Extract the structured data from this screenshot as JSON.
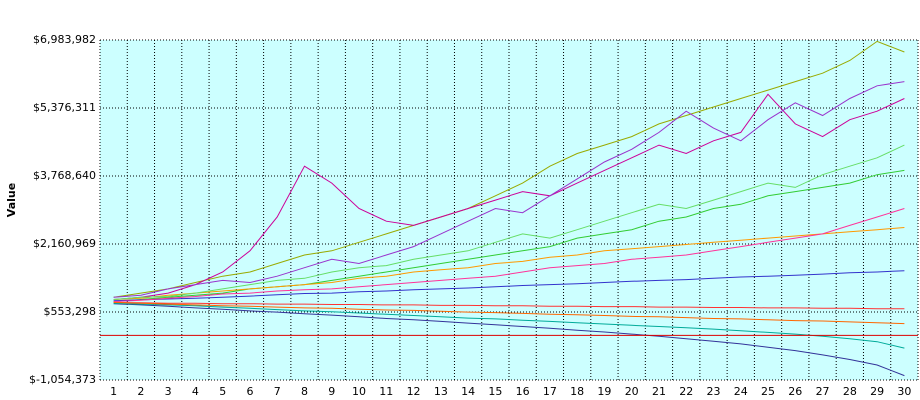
{
  "chart_data": {
    "type": "line",
    "y_label": "Value",
    "categories": [
      "1",
      "2",
      "3",
      "4",
      "5",
      "6",
      "7",
      "8",
      "9",
      "10",
      "11",
      "12",
      "13",
      "14",
      "15",
      "16",
      "17",
      "18",
      "19",
      "20",
      "21",
      "22",
      "23",
      "24",
      "25",
      "26",
      "27",
      "28",
      "29",
      "30"
    ],
    "ylim": [
      -1054373,
      6983982
    ],
    "yticks": [
      {
        "value": -1054373,
        "label": "$-1,054,373"
      },
      {
        "value": 553298,
        "label": "$553,298"
      },
      {
        "value": 2160969,
        "label": "$2,160,969"
      },
      {
        "value": 3768640,
        "label": "$3,768,640"
      },
      {
        "value": 5376311,
        "label": "$5,376,311"
      },
      {
        "value": 6983982,
        "label": "$6,983,982"
      }
    ],
    "grid": true,
    "background": "#ccffff",
    "reference_line": 0,
    "reference_color": "#dd0000",
    "series": [
      {
        "color": "#99aa00",
        "values": [
          900000,
          1000000,
          1100000,
          1250000,
          1400000,
          1500000,
          1700000,
          1900000,
          2000000,
          2200000,
          2400000,
          2600000,
          2800000,
          3000000,
          3300000,
          3600000,
          4000000,
          4300000,
          4500000,
          4700000,
          5000000,
          5200000,
          5400000,
          5600000,
          5800000,
          6000000,
          6200000,
          6500000,
          6950000,
          6700000
        ]
      },
      {
        "color": "#cc0099",
        "values": [
          850000,
          900000,
          1000000,
          1200000,
          1500000,
          2000000,
          2800000,
          4000000,
          3600000,
          3000000,
          2700000,
          2600000,
          2800000,
          3000000,
          3200000,
          3400000,
          3300000,
          3600000,
          3900000,
          4200000,
          4500000,
          4300000,
          4600000,
          4800000,
          5700000,
          5000000,
          4700000,
          5100000,
          5300000,
          5600000
        ]
      },
      {
        "color": "#33cc33",
        "values": [
          800000,
          850000,
          900000,
          950000,
          1000000,
          1100000,
          1150000,
          1200000,
          1300000,
          1400000,
          1500000,
          1600000,
          1700000,
          1800000,
          1900000,
          2000000,
          2100000,
          2300000,
          2400000,
          2500000,
          2700000,
          2800000,
          3000000,
          3100000,
          3300000,
          3400000,
          3500000,
          3600000,
          3800000,
          3900000
        ]
      },
      {
        "color": "#ff9900",
        "values": [
          850000,
          880000,
          950000,
          1000000,
          1050000,
          1100000,
          1150000,
          1200000,
          1250000,
          1350000,
          1400000,
          1500000,
          1550000,
          1600000,
          1700000,
          1750000,
          1850000,
          1900000,
          2000000,
          2050000,
          2100000,
          2150000,
          2200000,
          2250000,
          2300000,
          2350000,
          2400000,
          2450000,
          2500000,
          2550000
        ]
      },
      {
        "color": "#3333cc",
        "values": [
          820000,
          840000,
          860000,
          880000,
          900000,
          930000,
          960000,
          990000,
          1000000,
          1030000,
          1050000,
          1080000,
          1100000,
          1120000,
          1150000,
          1180000,
          1200000,
          1220000,
          1250000,
          1280000,
          1300000,
          1320000,
          1350000,
          1380000,
          1400000,
          1420000,
          1450000,
          1480000,
          1500000,
          1530000
        ]
      },
      {
        "color": "#ff3333",
        "values": [
          780000,
          770000,
          760000,
          760000,
          750000,
          750000,
          740000,
          740000,
          730000,
          730000,
          720000,
          720000,
          710000,
          710000,
          700000,
          700000,
          690000,
          690000,
          680000,
          680000,
          670000,
          670000,
          660000,
          660000,
          650000,
          650000,
          640000,
          640000,
          630000,
          630000
        ]
      },
      {
        "color": "#333399",
        "values": [
          750000,
          720000,
          690000,
          650000,
          620000,
          580000,
          550000,
          510000,
          480000,
          440000,
          400000,
          370000,
          330000,
          290000,
          250000,
          210000,
          170000,
          120000,
          80000,
          30000,
          -20000,
          -80000,
          -140000,
          -200000,
          -280000,
          -360000,
          -460000,
          -570000,
          -700000,
          -950000
        ]
      },
      {
        "color": "#00aa99",
        "values": [
          760000,
          740000,
          720000,
          700000,
          670000,
          640000,
          610000,
          580000,
          560000,
          530000,
          500000,
          470000,
          440000,
          410000,
          390000,
          360000,
          330000,
          300000,
          270000,
          240000,
          210000,
          180000,
          150000,
          110000,
          70000,
          30000,
          -20000,
          -80000,
          -150000,
          -300000
        ]
      },
      {
        "color": "#9933cc",
        "values": [
          900000,
          950000,
          1100000,
          1200000,
          1300000,
          1250000,
          1400000,
          1600000,
          1800000,
          1700000,
          1900000,
          2100000,
          2400000,
          2700000,
          3000000,
          2900000,
          3300000,
          3700000,
          4100000,
          4400000,
          4800000,
          5300000,
          4900000,
          4600000,
          5100000,
          5500000,
          5200000,
          5600000,
          5900000,
          6000000
        ]
      },
      {
        "color": "#66dd66",
        "values": [
          850000,
          900000,
          920000,
          1000000,
          1100000,
          1200000,
          1300000,
          1350000,
          1500000,
          1600000,
          1650000,
          1800000,
          1900000,
          2000000,
          2200000,
          2400000,
          2300000,
          2500000,
          2700000,
          2900000,
          3100000,
          3000000,
          3200000,
          3400000,
          3600000,
          3500000,
          3800000,
          4000000,
          4200000,
          4500000
        ]
      },
      {
        "color": "#ff3399",
        "values": [
          800000,
          830000,
          880000,
          920000,
          980000,
          1000000,
          1050000,
          1080000,
          1100000,
          1150000,
          1200000,
          1250000,
          1300000,
          1350000,
          1400000,
          1500000,
          1600000,
          1650000,
          1700000,
          1800000,
          1850000,
          1900000,
          2000000,
          2100000,
          2200000,
          2300000,
          2400000,
          2600000,
          2800000,
          3000000
        ]
      },
      {
        "color": "#ff6600",
        "values": [
          780000,
          760000,
          740000,
          720000,
          700000,
          690000,
          670000,
          650000,
          640000,
          620000,
          600000,
          590000,
          570000,
          550000,
          540000,
          520000,
          500000,
          490000,
          470000,
          450000,
          440000,
          420000,
          400000,
          390000,
          370000,
          350000,
          340000,
          320000,
          300000,
          280000
        ]
      }
    ]
  }
}
